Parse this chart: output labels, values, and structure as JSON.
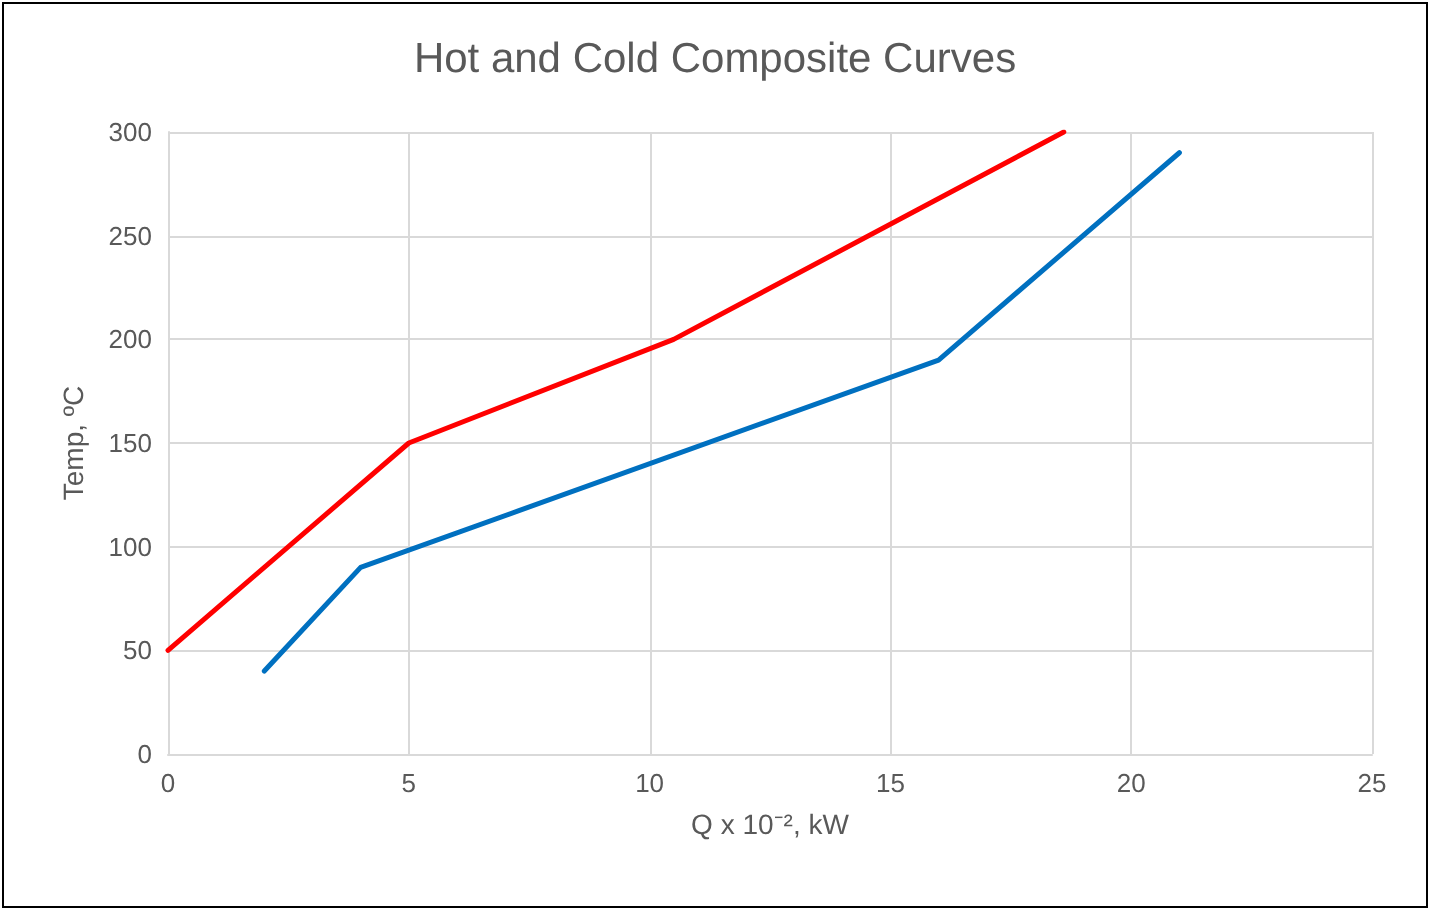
{
  "chart_data": {
    "type": "line",
    "title": "Hot and Cold Composite Curves",
    "xlabel": "Q x 10⁻², kW",
    "ylabel": "Temp, ºC",
    "series": [
      {
        "color": "#ff0000",
        "x": [
          0,
          5,
          10.5,
          18.6
        ],
        "values": [
          50,
          150,
          200,
          300
        ]
      },
      {
        "color": "#0070c0",
        "x": [
          2,
          4,
          16,
          21
        ],
        "values": [
          40,
          90,
          190,
          290
        ]
      }
    ],
    "xlim": [
      0,
      25
    ],
    "xticks": [
      0,
      5,
      10,
      15,
      20,
      25
    ],
    "ylim": [
      0,
      300
    ],
    "yticks": [
      0,
      50,
      100,
      150,
      200,
      250,
      300
    ],
    "grid": true,
    "marker": "none",
    "line_style": "solid"
  }
}
